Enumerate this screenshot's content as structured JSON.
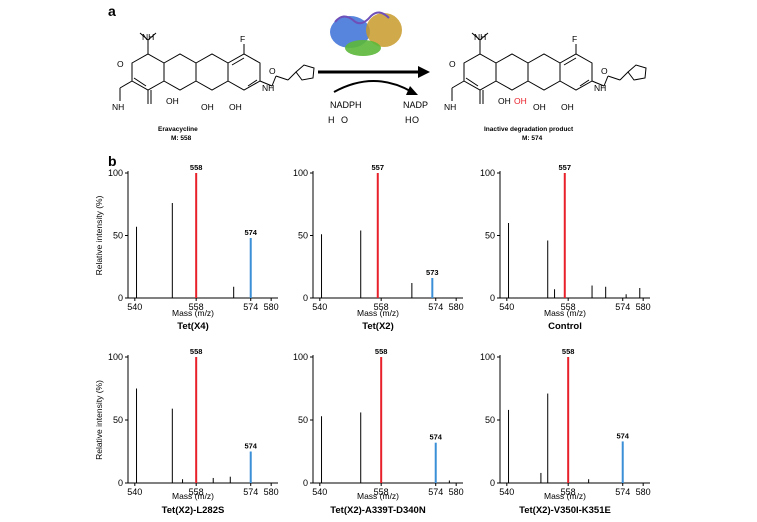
{
  "panel_a": {
    "letter": "a",
    "reactant": {
      "name": "Eravacycline",
      "mass": "M: 558"
    },
    "product": {
      "name": "Inactive degradation product",
      "mass": "M: 574"
    },
    "cofactors_in": [
      "NADPH",
      "H",
      "O"
    ],
    "cofactors_out": [
      "NADP",
      "H",
      "O"
    ],
    "atoms": {
      "amine": "NH",
      "fluoro": "F",
      "oxo": "O",
      "amide": "NH",
      "amide_o": "O",
      "nh2": "NH",
      "oh": "OH",
      "new_oh": "OH"
    }
  },
  "panel_b": {
    "letter": "b"
  },
  "colors": {
    "red_peak": "#e8202a",
    "blue_peak": "#3a8fd6",
    "axis": "#000000"
  },
  "chart_data": [
    {
      "type": "bar",
      "title": "Tet(X4)",
      "xlabel": "Mass (m/z)",
      "ylabel": "Relative intensity (%)",
      "xlim": [
        538,
        582
      ],
      "ylim": [
        0,
        100
      ],
      "xticks": [
        540,
        558,
        574,
        580
      ],
      "yticks": [
        0,
        50,
        100
      ],
      "peaks": [
        {
          "x": 540.5,
          "y": 57
        },
        {
          "x": 551,
          "y": 76
        },
        {
          "x": 558,
          "y": 100,
          "color": "red",
          "label": "558"
        },
        {
          "x": 569,
          "y": 9
        },
        {
          "x": 574,
          "y": 48,
          "color": "blue",
          "label": "574"
        }
      ]
    },
    {
      "type": "bar",
      "title": "Tet(X2)",
      "xlabel": "Mass (m/z)",
      "ylabel": "",
      "xlim": [
        538,
        582
      ],
      "ylim": [
        0,
        100
      ],
      "xticks": [
        540,
        558,
        574,
        580
      ],
      "yticks": [
        0,
        50,
        100
      ],
      "peaks": [
        {
          "x": 540.5,
          "y": 51
        },
        {
          "x": 552,
          "y": 54
        },
        {
          "x": 557,
          "y": 100,
          "color": "red",
          "label": "557"
        },
        {
          "x": 567,
          "y": 12
        },
        {
          "x": 573,
          "y": 16,
          "color": "blue",
          "label": "573"
        }
      ]
    },
    {
      "type": "bar",
      "title": "Control",
      "xlabel": "Mass (m/z)",
      "ylabel": "",
      "xlim": [
        538,
        582
      ],
      "ylim": [
        0,
        100
      ],
      "xticks": [
        540,
        558,
        574,
        580
      ],
      "yticks": [
        0,
        50,
        100
      ],
      "peaks": [
        {
          "x": 540.5,
          "y": 60
        },
        {
          "x": 552,
          "y": 46
        },
        {
          "x": 554,
          "y": 7
        },
        {
          "x": 557,
          "y": 100,
          "color": "red",
          "label": "557"
        },
        {
          "x": 565,
          "y": 10
        },
        {
          "x": 569,
          "y": 9
        },
        {
          "x": 575,
          "y": 3
        },
        {
          "x": 579,
          "y": 8
        }
      ]
    },
    {
      "type": "bar",
      "title": "Tet(X2)-L282S",
      "xlabel": "Mass (m/z)",
      "ylabel": "Relative intensity (%)",
      "xlim": [
        538,
        582
      ],
      "ylim": [
        0,
        100
      ],
      "xticks": [
        540,
        558,
        574,
        580
      ],
      "yticks": [
        0,
        50,
        100
      ],
      "peaks": [
        {
          "x": 540.5,
          "y": 75
        },
        {
          "x": 551,
          "y": 59
        },
        {
          "x": 554,
          "y": 3
        },
        {
          "x": 558,
          "y": 100,
          "color": "red",
          "label": "558"
        },
        {
          "x": 563,
          "y": 4
        },
        {
          "x": 568,
          "y": 5
        },
        {
          "x": 574,
          "y": 25,
          "color": "blue",
          "label": "574"
        }
      ]
    },
    {
      "type": "bar",
      "title": "Tet(X2)-A339T-D340N",
      "xlabel": "Mass (m/z)",
      "ylabel": "",
      "xlim": [
        538,
        582
      ],
      "ylim": [
        0,
        100
      ],
      "xticks": [
        540,
        558,
        574,
        580
      ],
      "yticks": [
        0,
        50,
        100
      ],
      "peaks": [
        {
          "x": 540.5,
          "y": 53
        },
        {
          "x": 552,
          "y": 56
        },
        {
          "x": 558,
          "y": 100,
          "color": "red",
          "label": "558"
        },
        {
          "x": 574,
          "y": 32,
          "color": "blue",
          "label": "574"
        },
        {
          "x": 578,
          "y": 2
        }
      ]
    },
    {
      "type": "bar",
      "title": "Tet(X2)-V350I-K351E",
      "xlabel": "Mass (m/z)",
      "ylabel": "",
      "xlim": [
        538,
        582
      ],
      "ylim": [
        0,
        100
      ],
      "xticks": [
        540,
        558,
        574,
        580
      ],
      "yticks": [
        0,
        50,
        100
      ],
      "peaks": [
        {
          "x": 540.5,
          "y": 58
        },
        {
          "x": 550,
          "y": 8
        },
        {
          "x": 552,
          "y": 71
        },
        {
          "x": 558,
          "y": 100,
          "color": "red",
          "label": "558"
        },
        {
          "x": 564,
          "y": 3
        },
        {
          "x": 574,
          "y": 33,
          "color": "blue",
          "label": "574"
        }
      ]
    }
  ]
}
